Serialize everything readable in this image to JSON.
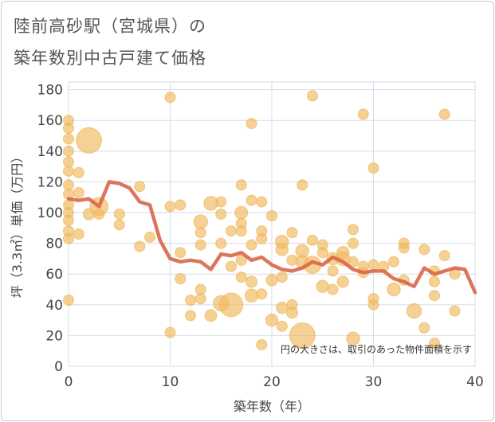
{
  "title_line1": "陸前高砂駅（宮城県）の",
  "title_line2": "築年数別中古戸建て価格",
  "chart_data": {
    "type": "scatter",
    "xlabel": "築年数（年）",
    "ylabel": "坪（3.3㎡）単価（万円）",
    "xlim": [
      0,
      40
    ],
    "ylim": [
      0,
      185
    ],
    "xticks": [
      "0",
      "10",
      "20",
      "30",
      "40"
    ],
    "yticks": [
      "0",
      "20",
      "40",
      "60",
      "80",
      "100",
      "120",
      "140",
      "160",
      "180"
    ],
    "grid": true,
    "annotation": "円の大きさは、取引のあった物件面積を示す",
    "colors": {
      "bubble": "#f0b95e",
      "line": "#d9664a",
      "grid": "#d5dde8",
      "text": "#444444"
    },
    "bubbles": [
      {
        "x": 0,
        "y": 160,
        "s": 1
      },
      {
        "x": 0,
        "y": 155,
        "s": 1
      },
      {
        "x": 0,
        "y": 148,
        "s": 1
      },
      {
        "x": 0,
        "y": 140,
        "s": 1
      },
      {
        "x": 0,
        "y": 133,
        "s": 1
      },
      {
        "x": 0,
        "y": 127,
        "s": 1
      },
      {
        "x": 0,
        "y": 118,
        "s": 1
      },
      {
        "x": 0,
        "y": 112,
        "s": 1
      },
      {
        "x": 0,
        "y": 105,
        "s": 1
      },
      {
        "x": 0,
        "y": 100,
        "s": 1
      },
      {
        "x": 0,
        "y": 95,
        "s": 1
      },
      {
        "x": 0,
        "y": 88,
        "s": 1
      },
      {
        "x": 0,
        "y": 83,
        "s": 1
      },
      {
        "x": 0,
        "y": 43,
        "s": 1
      },
      {
        "x": 1,
        "y": 126,
        "s": 1
      },
      {
        "x": 1,
        "y": 113,
        "s": 1
      },
      {
        "x": 1,
        "y": 86,
        "s": 1
      },
      {
        "x": 2,
        "y": 147,
        "s": 6
      },
      {
        "x": 2,
        "y": 99,
        "s": 1.2
      },
      {
        "x": 3,
        "y": 104,
        "s": 3
      },
      {
        "x": 3,
        "y": 99,
        "s": 1
      },
      {
        "x": 5,
        "y": 99,
        "s": 1
      },
      {
        "x": 5,
        "y": 92,
        "s": 1
      },
      {
        "x": 7,
        "y": 117,
        "s": 1
      },
      {
        "x": 7,
        "y": 78,
        "s": 1
      },
      {
        "x": 8,
        "y": 84,
        "s": 1
      },
      {
        "x": 10,
        "y": 175,
        "s": 1
      },
      {
        "x": 10,
        "y": 104,
        "s": 1
      },
      {
        "x": 10,
        "y": 22,
        "s": 1
      },
      {
        "x": 11,
        "y": 105,
        "s": 1
      },
      {
        "x": 11,
        "y": 74,
        "s": 1
      },
      {
        "x": 11,
        "y": 57,
        "s": 1
      },
      {
        "x": 12,
        "y": 43,
        "s": 1
      },
      {
        "x": 12,
        "y": 33,
        "s": 1
      },
      {
        "x": 13,
        "y": 94,
        "s": 1.8
      },
      {
        "x": 13,
        "y": 87,
        "s": 1
      },
      {
        "x": 13,
        "y": 79,
        "s": 1
      },
      {
        "x": 13,
        "y": 50,
        "s": 1
      },
      {
        "x": 13,
        "y": 44,
        "s": 1
      },
      {
        "x": 14,
        "y": 106,
        "s": 1.8
      },
      {
        "x": 14,
        "y": 33,
        "s": 1.3
      },
      {
        "x": 15,
        "y": 107,
        "s": 1
      },
      {
        "x": 15,
        "y": 99,
        "s": 1
      },
      {
        "x": 15,
        "y": 80,
        "s": 1
      },
      {
        "x": 15,
        "y": 41,
        "s": 2.2
      },
      {
        "x": 16,
        "y": 88,
        "s": 1
      },
      {
        "x": 16,
        "y": 65,
        "s": 1
      },
      {
        "x": 16,
        "y": 40,
        "s": 5.2
      },
      {
        "x": 17,
        "y": 118,
        "s": 1
      },
      {
        "x": 17,
        "y": 100,
        "s": 1.5
      },
      {
        "x": 17,
        "y": 93,
        "s": 1
      },
      {
        "x": 17,
        "y": 88,
        "s": 1
      },
      {
        "x": 17,
        "y": 69,
        "s": 1
      },
      {
        "x": 17,
        "y": 58,
        "s": 1
      },
      {
        "x": 18,
        "y": 158,
        "s": 1
      },
      {
        "x": 18,
        "y": 108,
        "s": 1
      },
      {
        "x": 18,
        "y": 79,
        "s": 1
      },
      {
        "x": 18,
        "y": 55,
        "s": 1.2
      },
      {
        "x": 18,
        "y": 46,
        "s": 1.6
      },
      {
        "x": 19,
        "y": 107,
        "s": 1
      },
      {
        "x": 19,
        "y": 88,
        "s": 1
      },
      {
        "x": 19,
        "y": 83,
        "s": 1
      },
      {
        "x": 19,
        "y": 47,
        "s": 1
      },
      {
        "x": 19,
        "y": 14,
        "s": 1
      },
      {
        "x": 20,
        "y": 98,
        "s": 1
      },
      {
        "x": 20,
        "y": 56,
        "s": 1.2
      },
      {
        "x": 20,
        "y": 30,
        "s": 1.4
      },
      {
        "x": 21,
        "y": 81,
        "s": 1.6
      },
      {
        "x": 21,
        "y": 76,
        "s": 1.4
      },
      {
        "x": 21,
        "y": 58,
        "s": 1
      },
      {
        "x": 21,
        "y": 38,
        "s": 1.2
      },
      {
        "x": 21,
        "y": 26,
        "s": 1
      },
      {
        "x": 22,
        "y": 87,
        "s": 1
      },
      {
        "x": 22,
        "y": 69,
        "s": 1
      },
      {
        "x": 22,
        "y": 40,
        "s": 1
      },
      {
        "x": 22,
        "y": 35,
        "s": 1.2
      },
      {
        "x": 23,
        "y": 118,
        "s": 1
      },
      {
        "x": 23,
        "y": 75,
        "s": 1.6
      },
      {
        "x": 23,
        "y": 68,
        "s": 1.6
      },
      {
        "x": 23,
        "y": 20,
        "s": 6
      },
      {
        "x": 24,
        "y": 176,
        "s": 1
      },
      {
        "x": 24,
        "y": 82,
        "s": 1
      },
      {
        "x": 24,
        "y": 66,
        "s": 2.8
      },
      {
        "x": 25,
        "y": 79,
        "s": 1
      },
      {
        "x": 25,
        "y": 74,
        "s": 1
      },
      {
        "x": 25,
        "y": 52,
        "s": 1.4
      },
      {
        "x": 26,
        "y": 70,
        "s": 1.4
      },
      {
        "x": 26,
        "y": 62,
        "s": 1
      },
      {
        "x": 26,
        "y": 50,
        "s": 1
      },
      {
        "x": 27,
        "y": 74,
        "s": 1.4
      },
      {
        "x": 27,
        "y": 70,
        "s": 1.8
      },
      {
        "x": 27,
        "y": 55,
        "s": 1.2
      },
      {
        "x": 28,
        "y": 89,
        "s": 1
      },
      {
        "x": 28,
        "y": 80,
        "s": 1
      },
      {
        "x": 28,
        "y": 68,
        "s": 1
      },
      {
        "x": 28,
        "y": 18,
        "s": 1.6
      },
      {
        "x": 29,
        "y": 164,
        "s": 1
      },
      {
        "x": 29,
        "y": 65,
        "s": 1
      },
      {
        "x": 29,
        "y": 61,
        "s": 1
      },
      {
        "x": 30,
        "y": 129,
        "s": 1
      },
      {
        "x": 30,
        "y": 66,
        "s": 1
      },
      {
        "x": 30,
        "y": 44,
        "s": 1
      },
      {
        "x": 30,
        "y": 40,
        "s": 1
      },
      {
        "x": 31,
        "y": 65,
        "s": 1
      },
      {
        "x": 32,
        "y": 68,
        "s": 1
      },
      {
        "x": 32,
        "y": 50,
        "s": 1.6
      },
      {
        "x": 33,
        "y": 80,
        "s": 1
      },
      {
        "x": 33,
        "y": 77,
        "s": 1
      },
      {
        "x": 33,
        "y": 56,
        "s": 1
      },
      {
        "x": 34,
        "y": 36,
        "s": 2
      },
      {
        "x": 35,
        "y": 76,
        "s": 1
      },
      {
        "x": 35,
        "y": 25,
        "s": 1
      },
      {
        "x": 36,
        "y": 62,
        "s": 1
      },
      {
        "x": 36,
        "y": 55,
        "s": 1
      },
      {
        "x": 36,
        "y": 46,
        "s": 1
      },
      {
        "x": 36,
        "y": 15,
        "s": 1
      },
      {
        "x": 37,
        "y": 164,
        "s": 1
      },
      {
        "x": 37,
        "y": 72,
        "s": 1
      },
      {
        "x": 38,
        "y": 60,
        "s": 1
      },
      {
        "x": 38,
        "y": 36,
        "s": 1
      }
    ],
    "line": {
      "x": [
        0,
        1,
        2,
        3,
        4,
        5,
        6,
        7,
        8,
        9,
        10,
        11,
        12,
        13,
        14,
        15,
        16,
        17,
        18,
        19,
        20,
        21,
        22,
        23,
        24,
        25,
        26,
        27,
        28,
        29,
        30,
        31,
        32,
        33,
        34,
        35,
        36,
        37,
        38,
        39,
        40
      ],
      "y": [
        109,
        108,
        109,
        104,
        120,
        119,
        116,
        107,
        105,
        82,
        70,
        68,
        69,
        68,
        63,
        73,
        72,
        74,
        69,
        71,
        66,
        63,
        62,
        64,
        68,
        66,
        71,
        68,
        63,
        61,
        62,
        62,
        57,
        55,
        52,
        64,
        60,
        62,
        64,
        63,
        48
      ]
    }
  }
}
